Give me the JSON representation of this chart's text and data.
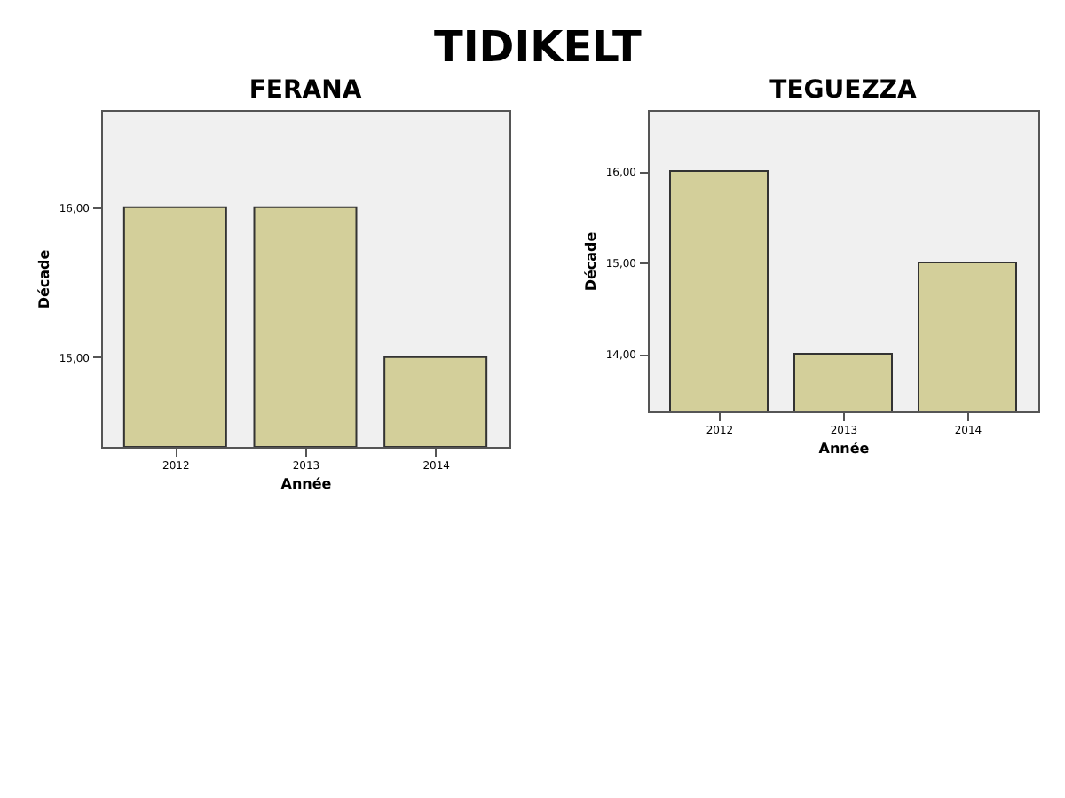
{
  "chart_data": [
    {
      "type": "bar",
      "title": "FERANA",
      "annotations": [
        "TIDIKELT"
      ],
      "xlabel": "Année",
      "ylabel": "Décade",
      "categories": [
        "2012",
        "2013",
        "2014"
      ],
      "values": [
        16,
        16,
        15
      ],
      "color": "#d3cf9a",
      "ylim": [
        14.4,
        16.65
      ],
      "yticks": [
        {
          "value": 15,
          "label": "15,00"
        },
        {
          "value": 16,
          "label": "16,00"
        }
      ],
      "grid": false
    },
    {
      "type": "bar",
      "title": "TEGUEZZA",
      "xlabel": "Année",
      "ylabel": "Décade",
      "categories": [
        "2012",
        "2013",
        "2014"
      ],
      "values": [
        16,
        14,
        15
      ],
      "color": "#d3cf9a",
      "ylim": [
        13.37,
        16.67
      ],
      "yticks": [
        {
          "value": 14,
          "label": "14,00"
        },
        {
          "value": 15,
          "label": "15,00"
        },
        {
          "value": 16,
          "label": "16,00"
        }
      ],
      "grid": false
    }
  ]
}
